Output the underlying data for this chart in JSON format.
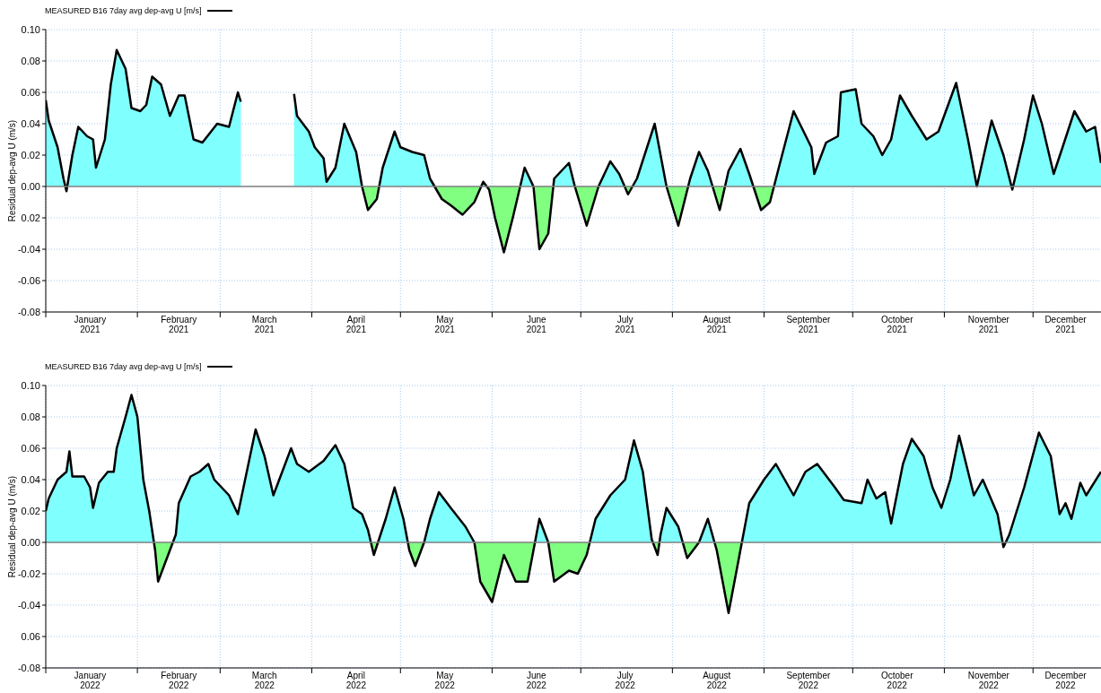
{
  "chart_data": [
    {
      "type": "area",
      "legend": "top left",
      "ylabel": "Residual dep-avg U (m/s)",
      "grid": true,
      "xlim": [
        "2021-01-01",
        "2021-12-24"
      ],
      "xticks": [
        {
          "value": "2021-01-01",
          "label": null
        },
        {
          "value": "2021-01-16",
          "label": "January\n2021"
        },
        {
          "value": "2021-02-01",
          "label": null
        },
        {
          "value": "2021-02-15",
          "label": "February\n2021"
        },
        {
          "value": "2021-03-01",
          "label": null
        },
        {
          "value": "2021-03-16",
          "label": "March\n2021"
        },
        {
          "value": "2021-04-01",
          "label": null
        },
        {
          "value": "2021-04-16",
          "label": "April\n2021"
        },
        {
          "value": "2021-05-01",
          "label": null
        },
        {
          "value": "2021-05-16",
          "label": "May\n2021"
        },
        {
          "value": "2021-06-01",
          "label": null
        },
        {
          "value": "2021-06-16",
          "label": "June\n2021"
        },
        {
          "value": "2021-07-01",
          "label": null
        },
        {
          "value": "2021-07-16",
          "label": "July\n2021"
        },
        {
          "value": "2021-08-01",
          "label": null
        },
        {
          "value": "2021-08-16",
          "label": "August\n2021"
        },
        {
          "value": "2021-09-01",
          "label": null
        },
        {
          "value": "2021-09-16",
          "label": "September\n2021"
        },
        {
          "value": "2021-10-01",
          "label": null
        },
        {
          "value": "2021-10-16",
          "label": "October\n2021"
        },
        {
          "value": "2021-11-01",
          "label": null
        },
        {
          "value": "2021-11-16",
          "label": "November\n2021"
        },
        {
          "value": "2021-12-01",
          "label": null
        },
        {
          "value": "2021-12-12",
          "label": "December\n2021"
        }
      ],
      "ylim": [
        -0.08,
        0.1
      ],
      "yticks": [
        {
          "value": -0.08,
          "label": "-0.08"
        },
        {
          "value": -0.06,
          "label": "-0.06"
        },
        {
          "value": -0.04,
          "label": "-0.04"
        },
        {
          "value": -0.02,
          "label": "0.02"
        },
        {
          "value": 0,
          "label": "0.00"
        },
        {
          "value": 0.02,
          "label": "0.02"
        },
        {
          "value": 0.04,
          "label": "0.04"
        },
        {
          "value": 0.06,
          "label": "0.06"
        },
        {
          "value": 0.08,
          "label": "0.08"
        },
        {
          "value": 0.1,
          "label": "0.10"
        }
      ],
      "ref_lines": [
        {
          "axis": "y",
          "value": 0,
          "color": "#808080"
        }
      ],
      "series": [
        {
          "name": "MEASURED B16 7day avg dep-avg U [m/s]",
          "color": "#000000",
          "colors": [
            "#80ffff",
            "#80ffff",
            "#80ffff",
            "#80ffff",
            "#80ff80",
            "#80ffff",
            "#80ffff",
            "#80ffff",
            "#80ffff",
            "#80ffff",
            "#80ffff",
            "#80ffff",
            "#80ffff",
            "#80ffff",
            "#80ffff",
            "#80ffff",
            "#80ffff",
            "#80ffff",
            "#80ffff",
            "#80ffff",
            "#80ffff",
            "#80ffff",
            "#80ffff",
            "#80ffff",
            "#80ffff",
            "#80ffff",
            "#80ffff",
            "#80ffff",
            null,
            "#80ffff",
            "#80ffff",
            "#80ffff",
            "#80ffff",
            "#80ffff",
            "#80ffff",
            "#80ffff",
            "#80ffff",
            "#80ffff",
            "#80ffff",
            "#80ff80",
            "#80ff80",
            "#80ffff",
            "#80ffff",
            "#80ffff",
            "#80ffff",
            "#80ffff",
            "#80ffff",
            "#80ff80",
            "#80ff80",
            "#80ff80",
            "#80ff80",
            "#80ffff",
            "#80ff80",
            "#80ff80",
            "#80ff80",
            "#80ff80",
            "#80ffff",
            "#80ffff",
            "#80ff80",
            "#80ff80",
            "#80ffff",
            "#80ffff",
            "#80ffff",
            "#80ff80",
            "#80ffff",
            "#80ffff",
            "#80ffff",
            "#80ff80",
            "#80ffff",
            "#80ffff",
            "#80ffff",
            "#80ff80",
            "#80ffff",
            "#80ffff",
            "#80ffff",
            "#80ff80",
            "#80ffff",
            "#80ffff",
            "#80ffff",
            "#80ff80",
            "#80ff80",
            "#80ffff",
            "#80ffff",
            "#80ffff",
            "#80ffff",
            "#80ffff",
            "#80ffff",
            "#80ffff",
            "#80ffff",
            "#80ffff",
            "#80ffff",
            "#80ffff",
            "#80ffff",
            "#80ffff",
            "#80ffff",
            "#80ffff",
            "#80ffff",
            "#80ffff",
            "#80ffff",
            "#80ffff",
            "#80ffff",
            "#80ffff",
            "#80ff80",
            "#80ffff",
            "#80ffff",
            "#80ffff",
            "#80ffff",
            "#80ffff",
            "#80ffff",
            "#80ffff",
            "#80ffff",
            "#80ffff"
          ],
          "x": [
            "2021-01-01",
            "2021-01-02",
            "2021-01-05",
            "2021-01-07",
            "2021-01-08",
            "2021-01-10",
            "2021-01-12",
            "2021-01-15",
            "2021-01-17",
            "2021-01-18",
            "2021-01-21",
            "2021-01-23",
            "2021-01-25",
            "2021-01-28",
            "2021-01-30",
            "2021-02-02",
            "2021-02-04",
            "2021-02-06",
            "2021-02-09",
            "2021-02-12",
            "2021-02-15",
            "2021-02-17",
            "2021-02-20",
            "2021-02-23",
            "2021-02-28",
            "2021-03-04",
            "2021-03-07",
            "2021-03-08",
            "2021-03-16",
            "2021-03-26",
            "2021-03-27",
            "2021-03-31",
            "2021-04-02",
            "2021-04-05",
            "2021-04-06",
            "2021-04-09",
            "2021-04-12",
            "2021-04-16",
            "2021-04-18",
            "2021-04-20",
            "2021-04-23",
            "2021-04-25",
            "2021-04-29",
            "2021-05-01",
            "2021-05-05",
            "2021-05-09",
            "2021-05-11",
            "2021-05-15",
            "2021-05-18",
            "2021-05-22",
            "2021-05-26",
            "2021-05-29",
            "2021-05-31",
            "2021-06-02",
            "2021-06-05",
            "2021-06-08",
            "2021-06-12",
            "2021-06-15",
            "2021-06-17",
            "2021-06-20",
            "2021-06-22",
            "2021-06-27",
            "2021-06-29",
            "2021-07-03",
            "2021-07-07",
            "2021-07-11",
            "2021-07-14",
            "2021-07-17",
            "2021-07-20",
            "2021-07-26",
            "2021-07-30",
            "2021-08-03",
            "2021-08-07",
            "2021-08-10",
            "2021-08-13",
            "2021-08-17",
            "2021-08-20",
            "2021-08-24",
            "2021-08-27",
            "2021-08-31",
            "2021-09-03",
            "2021-09-06",
            "2021-09-11",
            "2021-09-17",
            "2021-09-18",
            "2021-09-22",
            "2021-09-26",
            "2021-09-27",
            "2021-10-02",
            "2021-10-04",
            "2021-10-08",
            "2021-10-11",
            "2021-10-14",
            "2021-10-17",
            "2021-10-21",
            "2021-10-26",
            "2021-10-30",
            "2021-11-05",
            "2021-11-09",
            "2021-11-12",
            "2021-11-17",
            "2021-11-21",
            "2021-11-24",
            "2021-11-28",
            "2021-12-01",
            "2021-12-04",
            "2021-12-08",
            "2021-12-11",
            "2021-12-15",
            "2021-12-19",
            "2021-12-22",
            "2021-12-24"
          ],
          "values": [
            0.055,
            0.042,
            0.025,
            0.005,
            -0.003,
            0.02,
            0.038,
            0.032,
            0.03,
            0.012,
            0.03,
            0.065,
            0.087,
            0.075,
            0.05,
            0.048,
            0.052,
            0.07,
            0.065,
            0.045,
            0.058,
            0.058,
            0.03,
            0.028,
            0.04,
            0.038,
            0.06,
            0.054,
            null,
            0.059,
            0.045,
            0.035,
            0.025,
            0.018,
            0.003,
            0.012,
            0.04,
            0.022,
            0.0,
            -0.015,
            -0.008,
            0.012,
            0.035,
            0.025,
            0.022,
            0.02,
            0.005,
            -0.008,
            -0.012,
            -0.018,
            -0.01,
            0.003,
            -0.002,
            -0.02,
            -0.042,
            -0.02,
            0.012,
            0.0,
            -0.04,
            -0.03,
            0.005,
            0.015,
            0.0,
            -0.025,
            0.0,
            0.016,
            0.008,
            -0.005,
            0.005,
            0.04,
            0.0,
            -0.025,
            0.005,
            0.022,
            0.01,
            -0.015,
            0.01,
            0.024,
            0.008,
            -0.015,
            -0.01,
            0.012,
            0.048,
            0.025,
            0.008,
            0.028,
            0.032,
            0.06,
            0.062,
            0.04,
            0.032,
            0.02,
            0.03,
            0.058,
            0.045,
            0.03,
            0.035,
            0.066,
            0.03,
            0.0,
            0.042,
            0.02,
            -0.002,
            0.03,
            0.058,
            0.04,
            0.008,
            0.025,
            0.048,
            0.035,
            0.038,
            0.015
          ]
        }
      ]
    },
    {
      "type": "area",
      "legend": "top left",
      "ylabel": "Residual dep-avg U (m/s)",
      "grid": true,
      "xlim": [
        "2022-01-01",
        "2022-12-24"
      ],
      "xticks": [
        {
          "value": "2022-01-01",
          "label": null
        },
        {
          "value": "2022-01-16",
          "label": "January\n2022"
        },
        {
          "value": "2022-02-01",
          "label": null
        },
        {
          "value": "2022-02-15",
          "label": "February\n2022"
        },
        {
          "value": "2022-03-01",
          "label": null
        },
        {
          "value": "2022-03-16",
          "label": "March\n2022"
        },
        {
          "value": "2022-04-01",
          "label": null
        },
        {
          "value": "2022-04-16",
          "label": "April\n2022"
        },
        {
          "value": "2022-05-01",
          "label": null
        },
        {
          "value": "2022-05-16",
          "label": "May\n2022"
        },
        {
          "value": "2022-06-01",
          "label": null
        },
        {
          "value": "2022-06-16",
          "label": "June\n2022"
        },
        {
          "value": "2022-07-01",
          "label": null
        },
        {
          "value": "2022-07-16",
          "label": "July\n2022"
        },
        {
          "value": "2022-08-01",
          "label": null
        },
        {
          "value": "2022-08-16",
          "label": "August\n2022"
        },
        {
          "value": "2022-09-01",
          "label": null
        },
        {
          "value": "2022-09-16",
          "label": "September\n2022"
        },
        {
          "value": "2022-10-01",
          "label": null
        },
        {
          "value": "2022-10-16",
          "label": "October\n2022"
        },
        {
          "value": "2022-11-01",
          "label": null
        },
        {
          "value": "2022-11-16",
          "label": "November\n2022"
        },
        {
          "value": "2022-12-01",
          "label": null
        },
        {
          "value": "2022-12-12",
          "label": "December\n2022"
        }
      ],
      "ylim": [
        -0.08,
        0.1
      ],
      "yticks": [
        {
          "value": -0.08,
          "label": "-0.08"
        },
        {
          "value": -0.06,
          "label": "0.06"
        },
        {
          "value": -0.04,
          "label": "-0.04"
        },
        {
          "value": -0.02,
          "label": "-0.02"
        },
        {
          "value": 0,
          "label": "0.00"
        },
        {
          "value": 0.02,
          "label": "0.02"
        },
        {
          "value": 0.04,
          "label": "0.04"
        },
        {
          "value": 0.06,
          "label": "0.06"
        },
        {
          "value": 0.08,
          "label": "0.08"
        },
        {
          "value": 0.1,
          "label": "0.10"
        }
      ],
      "ref_lines": [
        {
          "axis": "y",
          "value": 0,
          "color": "#808080"
        }
      ],
      "series": [
        {
          "name": "MEASURED B16 7day avg dep-avg U [m/s]",
          "color": "#000000",
          "colors": [
            "#80ffff",
            "#80ffff",
            "#80ffff",
            "#80ffff",
            "#80ffff",
            "#80ffff",
            "#80ffff",
            "#80ffff",
            "#80ffff",
            "#80ffff",
            "#80ffff",
            "#80ffff",
            "#80ffff",
            "#80ffff",
            "#80ffff",
            "#80ffff",
            "#80ffff",
            "#80ffff",
            "#80ff80",
            "#80ff80",
            "#80ff80",
            "#80ffff",
            "#80ffff",
            "#80ffff",
            "#80ffff",
            "#80ffff",
            "#80ffff",
            "#80ffff",
            "#80ffff",
            "#80ffff",
            "#80ffff",
            "#80ffff",
            "#80ffff",
            "#80ffff",
            "#80ffff",
            "#80ffff",
            "#80ffff",
            "#80ffff",
            "#80ffff",
            "#80ffff",
            "#80ffff",
            "#80ffff",
            "#80ffff",
            "#80ff80",
            "#80ffff",
            "#80ffff",
            "#80ffff",
            "#80ff80",
            "#80ff80",
            "#80ffff",
            "#80ffff",
            "#80ffff",
            "#80ffff",
            "#80ffff",
            "#80ffff",
            "#80ff80",
            "#80ff80",
            "#80ff80",
            "#80ff80",
            "#80ff80",
            "#80ffff",
            "#80ffff",
            "#80ff80",
            "#80ff80",
            "#80ff80",
            "#80ff80",
            "#80ffff",
            "#80ffff",
            "#80ffff",
            "#80ffff",
            "#80ffff",
            "#80ffff",
            "#80ff80",
            "#80ffff",
            "#80ffff",
            "#80ffff",
            "#80ff80",
            "#80ffff",
            "#80ffff",
            "#80ff80",
            "#80ff80",
            "#80ff80",
            "#80ffff",
            "#80ffff",
            "#80ffff",
            "#80ffff",
            "#80ffff",
            "#80ffff",
            "#80ffff",
            "#80ffff",
            "#80ffff",
            "#80ffff",
            "#80ffff",
            "#80ffff",
            "#80ffff",
            "#80ffff",
            "#80ffff",
            "#80ffff",
            "#80ffff",
            "#80ffff",
            "#80ffff",
            "#80ffff",
            "#80ffff",
            "#80ffff",
            "#80ffff",
            "#80ff80",
            "#80ffff",
            "#80ffff",
            "#80ffff",
            "#80ffff",
            "#80ffff",
            "#80ffff",
            "#80ffff",
            "#80ffff",
            "#80ffff",
            "#80ffff"
          ],
          "x": [
            "2022-01-01",
            "2022-01-02",
            "2022-01-05",
            "2022-01-08",
            "2022-01-09",
            "2022-01-10",
            "2022-01-14",
            "2022-01-16",
            "2022-01-17",
            "2022-01-19",
            "2022-01-22",
            "2022-01-24",
            "2022-01-25",
            "2022-01-28",
            "2022-01-30",
            "2022-02-01",
            "2022-02-03",
            "2022-02-05",
            "2022-02-07",
            "2022-02-08",
            "2022-02-10",
            "2022-02-14",
            "2022-02-15",
            "2022-02-19",
            "2022-02-22",
            "2022-02-25",
            "2022-02-27",
            "2022-03-04",
            "2022-03-07",
            "2022-03-10",
            "2022-03-13",
            "2022-03-16",
            "2022-03-19",
            "2022-03-22",
            "2022-03-25",
            "2022-03-27",
            "2022-03-31",
            "2022-04-05",
            "2022-04-09",
            "2022-04-12",
            "2022-04-15",
            "2022-04-18",
            "2022-04-20",
            "2022-04-22",
            "2022-04-26",
            "2022-04-29",
            "2022-05-02",
            "2022-05-04",
            "2022-05-06",
            "2022-05-09",
            "2022-05-11",
            "2022-05-14",
            "2022-05-18",
            "2022-05-23",
            "2022-05-26",
            "2022-05-28",
            "2022-06-01",
            "2022-06-05",
            "2022-06-09",
            "2022-06-13",
            "2022-06-17",
            "2022-06-20",
            "2022-06-22",
            "2022-06-27",
            "2022-06-30",
            "2022-07-03",
            "2022-07-06",
            "2022-07-11",
            "2022-07-16",
            "2022-07-19",
            "2022-07-22",
            "2022-07-25",
            "2022-07-27",
            "2022-07-28",
            "2022-07-30",
            "2022-08-03",
            "2022-08-06",
            "2022-08-10",
            "2022-08-13",
            "2022-08-16",
            "2022-08-20",
            "2022-08-24",
            "2022-08-27",
            "2022-09-01",
            "2022-09-05",
            "2022-09-11",
            "2022-09-15",
            "2022-09-19",
            "2022-09-25",
            "2022-09-28",
            "2022-10-04",
            "2022-10-06",
            "2022-10-09",
            "2022-10-12",
            "2022-10-14",
            "2022-10-18",
            "2022-10-21",
            "2022-10-25",
            "2022-10-28",
            "2022-10-31",
            "2022-11-03",
            "2022-11-06",
            "2022-11-11",
            "2022-11-14",
            "2022-11-19",
            "2022-11-21",
            "2022-11-23",
            "2022-11-28",
            "2022-12-03",
            "2022-12-07",
            "2022-12-10",
            "2022-12-12",
            "2022-12-14",
            "2022-12-17",
            "2022-12-19",
            "2022-12-24"
          ],
          "values": [
            0.02,
            0.028,
            0.04,
            0.045,
            0.058,
            0.042,
            0.042,
            0.035,
            0.022,
            0.038,
            0.045,
            0.045,
            0.06,
            0.08,
            0.094,
            0.08,
            0.04,
            0.02,
            -0.005,
            -0.025,
            -0.015,
            0.005,
            0.025,
            0.042,
            0.045,
            0.05,
            0.04,
            0.03,
            0.018,
            0.045,
            0.072,
            0.055,
            0.03,
            0.045,
            0.06,
            0.05,
            0.045,
            0.052,
            0.062,
            0.05,
            0.022,
            0.018,
            0.008,
            -0.008,
            0.015,
            0.035,
            0.015,
            -0.005,
            -0.015,
            0.0,
            0.015,
            0.032,
            0.022,
            0.01,
            0.0,
            -0.025,
            -0.038,
            -0.008,
            -0.025,
            -0.025,
            0.015,
            0.0,
            -0.025,
            -0.018,
            -0.02,
            -0.008,
            0.015,
            0.03,
            0.04,
            0.065,
            0.045,
            0.002,
            -0.008,
            0.005,
            0.022,
            0.01,
            -0.01,
            0.0,
            0.015,
            -0.005,
            -0.045,
            -0.005,
            0.025,
            0.04,
            0.05,
            0.03,
            0.045,
            0.05,
            0.035,
            0.027,
            0.025,
            0.04,
            0.028,
            0.032,
            0.012,
            0.05,
            0.066,
            0.055,
            0.035,
            0.022,
            0.04,
            0.068,
            0.03,
            0.04,
            0.018,
            -0.003,
            0.005,
            0.035,
            0.07,
            0.055,
            0.018,
            0.025,
            0.015,
            0.038,
            0.03,
            0.045
          ]
        }
      ]
    }
  ]
}
